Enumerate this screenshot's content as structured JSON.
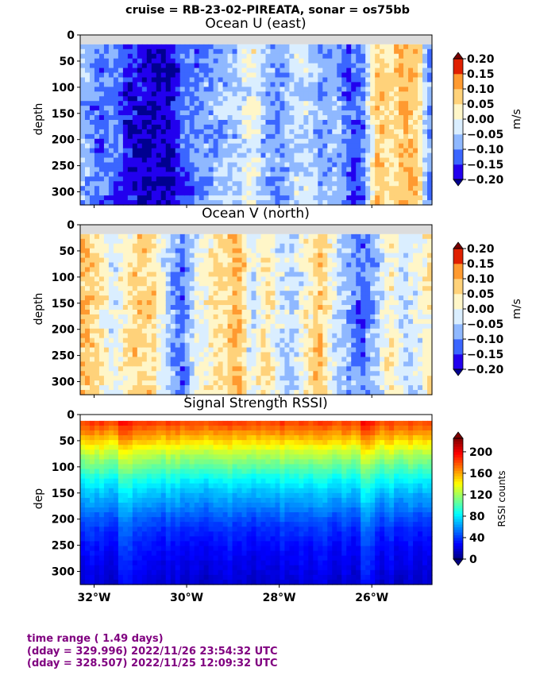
{
  "suptitle": "cruise = RB-23-02-PIREATA,  sonar = os75bb",
  "footer": {
    "line1": "time range ( 1.49 days)",
    "line2": "(dday = 329.996) 2022/11/26 23:54:32 UTC",
    "line3": "(dday = 328.507) 2022/11/25 12:09:32 UTC"
  },
  "chart_data": [
    {
      "type": "heatmap",
      "title": "Ocean U (east)",
      "ylabel": "depth",
      "xlabel": "",
      "xlim": [
        -32.3,
        -24.7
      ],
      "ylim": [
        325,
        0
      ],
      "x_ticks": [
        -32,
        -30,
        -28,
        -26
      ],
      "x_tick_labels": [],
      "y_ticks": [
        0,
        50,
        100,
        150,
        200,
        250,
        300
      ],
      "y_tick_labels": [
        "0",
        "50",
        "100",
        "150",
        "200",
        "250",
        "300"
      ],
      "no_data_color": "#dcdcdc",
      "depth_range": [
        18,
        325
      ],
      "colorbar": {
        "label": "m/s",
        "vmin": -0.2,
        "vmax": 0.2,
        "ticks": [
          "0.20",
          "0.15",
          "0.10",
          "0.05",
          "0.00",
          "−0.05",
          "−0.10",
          "−0.15",
          "−0.20"
        ],
        "levels": [
          -0.2,
          -0.15,
          -0.1,
          -0.05,
          0.0,
          0.05,
          0.1,
          0.15,
          0.2
        ],
        "colors": [
          "#2200ee",
          "#3b66ff",
          "#8fb8ff",
          "#daeeff",
          "#fff6c8",
          "#ffd27a",
          "#ff9a30",
          "#e02000"
        ],
        "under_color": "#000090",
        "over_color": "#7a0000"
      },
      "profile_values": {
        "x": [
          -32.2,
          -31.9,
          -31.6,
          -31.3,
          -31.0,
          -30.7,
          -30.4,
          -30.1,
          -29.8,
          -29.5,
          -29.2,
          -28.9,
          -28.6,
          -28.3,
          -28.0,
          -27.7,
          -27.4,
          -27.1,
          -26.8,
          -26.5,
          -26.2,
          -25.9,
          -25.6,
          -25.3,
          -25.0,
          -24.8
        ],
        "value": [
          -0.07,
          -0.12,
          -0.1,
          -0.16,
          -0.19,
          -0.21,
          -0.2,
          -0.13,
          -0.11,
          -0.09,
          -0.06,
          -0.05,
          0.01,
          -0.07,
          -0.1,
          -0.04,
          -0.03,
          -0.09,
          -0.06,
          -0.14,
          -0.12,
          0.08,
          0.04,
          0.1,
          0.06,
          -0.08
        ]
      }
    },
    {
      "type": "heatmap",
      "title": "Ocean V (north)",
      "ylabel": "depth",
      "xlabel": "",
      "xlim": [
        -32.3,
        -24.7
      ],
      "ylim": [
        325,
        0
      ],
      "x_ticks": [
        -32,
        -30,
        -28,
        -26
      ],
      "x_tick_labels": [],
      "y_ticks": [
        0,
        50,
        100,
        150,
        200,
        250,
        300
      ],
      "y_tick_labels": [
        "0",
        "50",
        "100",
        "150",
        "200",
        "250",
        "300"
      ],
      "no_data_color": "#dcdcdc",
      "depth_range": [
        18,
        325
      ],
      "colorbar": {
        "label": "m/s",
        "vmin": -0.2,
        "vmax": 0.2,
        "ticks": [
          "0.20",
          "0.15",
          "0.10",
          "0.05",
          "0.00",
          "−0.05",
          "−0.10",
          "−0.15",
          "−0.20"
        ],
        "levels": [
          -0.2,
          -0.15,
          -0.1,
          -0.05,
          0.0,
          0.05,
          0.1,
          0.15,
          0.2
        ],
        "colors": [
          "#2200ee",
          "#3b66ff",
          "#8fb8ff",
          "#daeeff",
          "#fff6c8",
          "#ffd27a",
          "#ff9a30",
          "#e02000"
        ],
        "under_color": "#000090",
        "over_color": "#7a0000"
      },
      "profile_values": {
        "x": [
          -32.2,
          -31.9,
          -31.6,
          -31.3,
          -31.0,
          -30.7,
          -30.4,
          -30.1,
          -29.8,
          -29.5,
          -29.2,
          -28.9,
          -28.6,
          -28.3,
          -28.0,
          -27.7,
          -27.4,
          -27.1,
          -26.8,
          -26.5,
          -26.2,
          -25.9,
          -25.6,
          -25.3,
          -25.0,
          -24.8
        ],
        "value": [
          0.09,
          0.04,
          -0.03,
          0.03,
          0.08,
          0.06,
          -0.05,
          -0.12,
          -0.01,
          0.02,
          0.05,
          0.12,
          -0.04,
          0.06,
          -0.03,
          -0.06,
          0.02,
          0.09,
          -0.03,
          -0.07,
          -0.12,
          -0.06,
          0.04,
          -0.04,
          -0.02,
          0.03
        ]
      }
    },
    {
      "type": "heatmap",
      "title": "Signal Strength RSSI)",
      "ylabel": "dep",
      "xlabel": "",
      "xlim": [
        -32.3,
        -24.7
      ],
      "ylim": [
        325,
        0
      ],
      "x_ticks": [
        -32,
        -30,
        -28,
        -26
      ],
      "x_tick_labels": [
        "32°W",
        "30°W",
        "28°W",
        "26°W"
      ],
      "y_ticks": [
        0,
        50,
        100,
        150,
        200,
        250,
        300
      ],
      "y_tick_labels": [
        "0",
        "50",
        "100",
        "150",
        "200",
        "250",
        "300"
      ],
      "depth_range": [
        12,
        325
      ],
      "colorbar": {
        "label": "RSSI counts",
        "vmin": 0,
        "vmax": 225,
        "ticks": [
          "200",
          "160",
          "120",
          "80",
          "40",
          "0"
        ],
        "tick_values": [
          200,
          160,
          120,
          80,
          40,
          0
        ],
        "colormap": "jet"
      },
      "rssi_profile": {
        "depth": [
          12,
          30,
          50,
          75,
          100,
          125,
          150,
          175,
          200,
          225,
          250,
          275,
          300,
          325
        ],
        "value": [
          185,
          170,
          150,
          125,
          105,
          85,
          70,
          58,
          45,
          36,
          30,
          26,
          22,
          18
        ]
      }
    }
  ]
}
